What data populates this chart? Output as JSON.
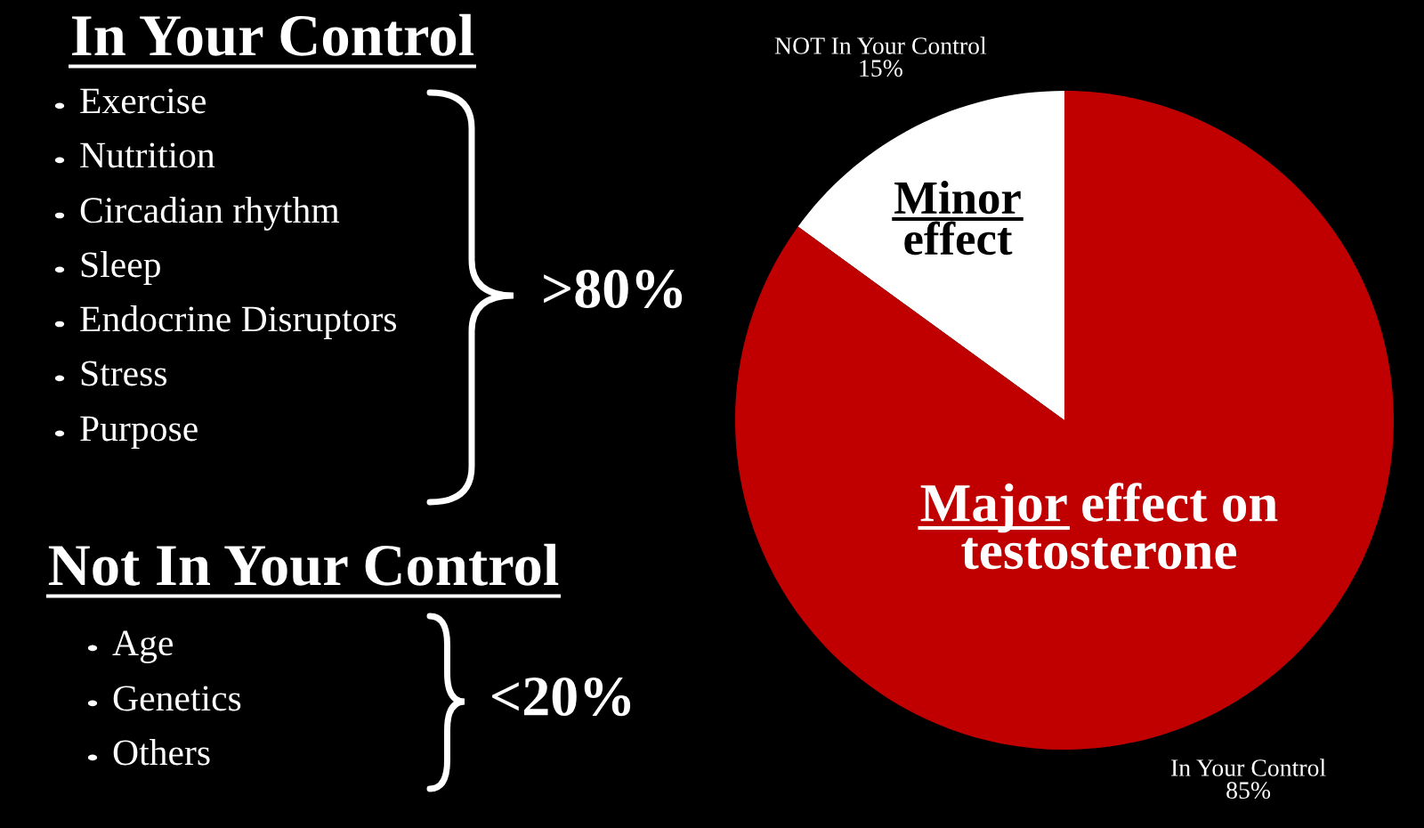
{
  "chart_data": {
    "type": "pie",
    "categories": [
      "NOT In Your Control",
      "In Your Control"
    ],
    "values": [
      15,
      85
    ],
    "value_labels": [
      "15%",
      "85%"
    ],
    "colors": [
      "#ffffff",
      "#c00000"
    ],
    "legend": false,
    "annotations": [
      "In Your Control",
      "Exercise",
      "Nutrition",
      "Circadian rhythm",
      "Sleep",
      "Endocrine Disruptors",
      "Stress",
      "Purpose",
      ">80%",
      "Not In Your Control",
      "Age",
      "Genetics",
      "Others",
      "<20%",
      "Minor\neffect",
      "Major effect on\ntestosterone"
    ]
  }
}
